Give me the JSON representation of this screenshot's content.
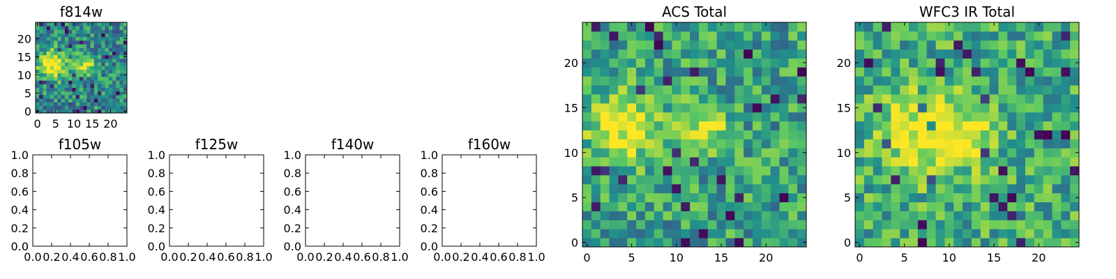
{
  "colors": {
    "colormap": "viridis-like",
    "low": "#440154",
    "mid_low": "#2a788e",
    "mid": "#22a884",
    "mid_high": "#7ad151",
    "high": "#fde725"
  },
  "chart_data": [
    {
      "type": "heatmap",
      "title": "f814w",
      "xlim": [
        -0.5,
        24.5
      ],
      "ylim": [
        -0.5,
        24.5
      ],
      "xticks": [
        0,
        5,
        10,
        15,
        20
      ],
      "yticks": [
        0,
        5,
        10,
        15,
        20
      ],
      "tick_labels_x": [
        "0",
        "5",
        "10",
        "15",
        "20"
      ],
      "tick_labels_y": [
        "0",
        "5",
        "10",
        "15",
        "20"
      ],
      "grid_size": [
        25,
        25
      ],
      "value_range": [
        0,
        1
      ],
      "blobs": [
        {
          "x": 4,
          "y": 13,
          "sigma": 2.8,
          "amplitude": 0.6
        },
        {
          "x": 13,
          "y": 12.5,
          "sigma": 2.0,
          "amplitude": 0.45
        }
      ],
      "background_level": 0.45,
      "seed": 11
    },
    {
      "type": "heatmap",
      "title": "f105w",
      "empty": true,
      "xlim": [
        0.0,
        1.0
      ],
      "ylim": [
        0.0,
        1.0
      ],
      "tick_labels_x": [
        "0.0",
        "0.2",
        "0.4",
        "0.6",
        "0.8",
        "1.0"
      ],
      "tick_labels_y": [
        "0.0",
        "0.2",
        "0.4",
        "0.6",
        "0.8",
        "1.0"
      ]
    },
    {
      "type": "heatmap",
      "title": "f125w",
      "empty": true,
      "xlim": [
        0.0,
        1.0
      ],
      "ylim": [
        0.0,
        1.0
      ],
      "tick_labels_x": [
        "0.0",
        "0.2",
        "0.4",
        "0.6",
        "0.8",
        "1.0"
      ],
      "tick_labels_y": [
        "0.0",
        "0.2",
        "0.4",
        "0.6",
        "0.8",
        "1.0"
      ]
    },
    {
      "type": "heatmap",
      "title": "f140w",
      "empty": true,
      "xlim": [
        0.0,
        1.0
      ],
      "ylim": [
        0.0,
        1.0
      ],
      "tick_labels_x": [
        "0.0",
        "0.2",
        "0.4",
        "0.6",
        "0.8",
        "1.0"
      ],
      "tick_labels_y": [
        "0.0",
        "0.2",
        "0.4",
        "0.6",
        "0.8",
        "1.0"
      ]
    },
    {
      "type": "heatmap",
      "title": "f160w",
      "empty": true,
      "xlim": [
        0.0,
        1.0
      ],
      "ylim": [
        0.0,
        1.0
      ],
      "tick_labels_x": [
        "0.0",
        "0.2",
        "0.4",
        "0.6",
        "0.8",
        "1.0"
      ],
      "tick_labels_y": [
        "0.0",
        "0.2",
        "0.4",
        "0.6",
        "0.8",
        "1.0"
      ]
    },
    {
      "type": "heatmap",
      "title": "ACS Total",
      "xlim": [
        -0.5,
        24.5
      ],
      "ylim": [
        -0.5,
        24.5
      ],
      "xticks": [
        0,
        5,
        10,
        15,
        20
      ],
      "yticks": [
        0,
        5,
        10,
        15,
        20
      ],
      "tick_labels_x": [
        "0",
        "5",
        "10",
        "15",
        "20"
      ],
      "tick_labels_y": [
        "0",
        "5",
        "10",
        "15",
        "20"
      ],
      "grid_size": [
        25,
        25
      ],
      "value_range": [
        0,
        1
      ],
      "blobs": [
        {
          "x": 4,
          "y": 13,
          "sigma": 2.8,
          "amplitude": 0.45
        },
        {
          "x": 13,
          "y": 12.5,
          "sigma": 2.0,
          "amplitude": 0.35
        }
      ],
      "background_level": 0.55,
      "seed": 11
    },
    {
      "type": "heatmap",
      "title": "WFC3 IR Total",
      "xlim": [
        -0.5,
        24.5
      ],
      "ylim": [
        -0.5,
        24.5
      ],
      "xticks": [
        0,
        5,
        10,
        15,
        20
      ],
      "yticks": [
        0,
        5,
        10,
        15,
        20
      ],
      "tick_labels_x": [
        "0",
        "5",
        "10",
        "15",
        "20"
      ],
      "tick_labels_y": [
        "0",
        "5",
        "10",
        "15",
        "20"
      ],
      "grid_size": [
        25,
        25
      ],
      "value_range": [
        0,
        1
      ],
      "blobs": [
        {
          "x": 7,
          "y": 12,
          "sigma": 3.5,
          "amplitude": 0.35
        },
        {
          "x": 12,
          "y": 12,
          "sigma": 2.5,
          "amplitude": 0.25
        }
      ],
      "background_level": 0.6,
      "seed": 29
    }
  ]
}
